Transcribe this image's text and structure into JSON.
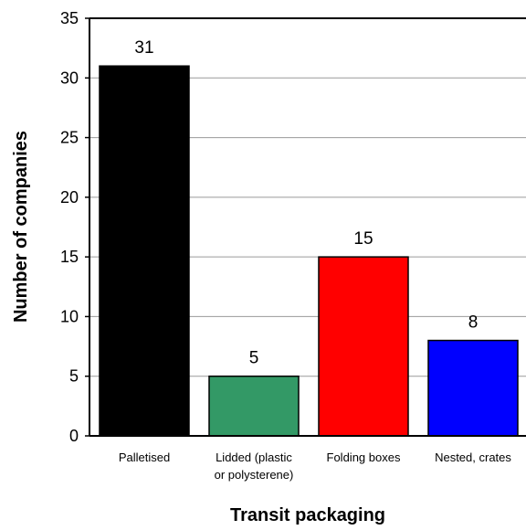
{
  "chart_data": {
    "type": "bar",
    "title": "",
    "xlabel": "Transit packaging",
    "ylabel": "Number of companies",
    "categories": [
      [
        "Palletised"
      ],
      [
        "Lidded (plastic",
        "or polysterene)"
      ],
      [
        "Folding boxes"
      ],
      [
        "Nested, crates"
      ]
    ],
    "values": [
      31,
      5,
      15,
      8
    ],
    "value_labels": [
      "31",
      "5",
      "15",
      "8"
    ],
    "colors": [
      "#000000",
      "#339966",
      "#ff0000",
      "#0000ff"
    ],
    "ylim": [
      0,
      35
    ],
    "yticks": [
      0,
      5,
      10,
      15,
      20,
      25,
      30,
      35
    ],
    "grid": true,
    "legend": "none"
  }
}
